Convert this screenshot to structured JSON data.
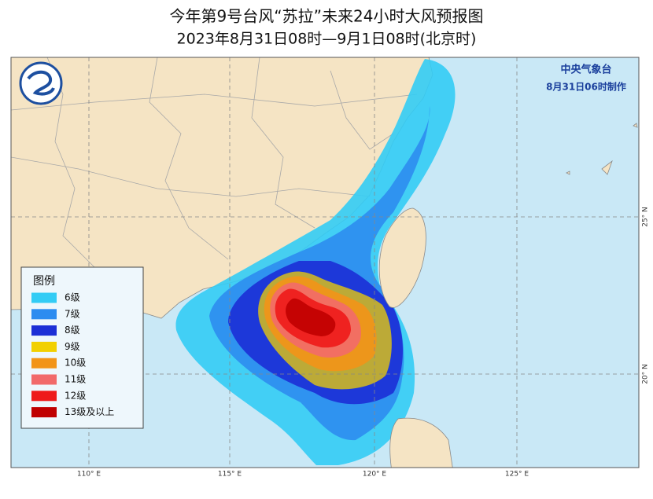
{
  "header": {
    "title": "今年第9号台风“苏拉”未来24小时大风预报图",
    "subtitle": "2023年8月31日08时—9月1日08时(北京时)"
  },
  "agency": {
    "name": "中央气象台",
    "issued": "8月31日06时制作"
  },
  "legend": {
    "title": "图例",
    "items": [
      {
        "label": "6级",
        "color": "#33ccf5"
      },
      {
        "label": "7级",
        "color": "#2d8cf0"
      },
      {
        "label": "8级",
        "color": "#1c2fd6"
      },
      {
        "label": "9级",
        "color": "#f2d000"
      },
      {
        "label": "10级",
        "color": "#f29418"
      },
      {
        "label": "11级",
        "color": "#f26a6a"
      },
      {
        "label": "12级",
        "color": "#ee1a1a"
      },
      {
        "label": "13级及以上",
        "color": "#c00000"
      }
    ]
  },
  "map": {
    "lon_labels": [
      "110° E",
      "115° E",
      "120° E",
      "125° E"
    ],
    "lat_labels": [
      "25° N",
      "20° N"
    ]
  }
}
